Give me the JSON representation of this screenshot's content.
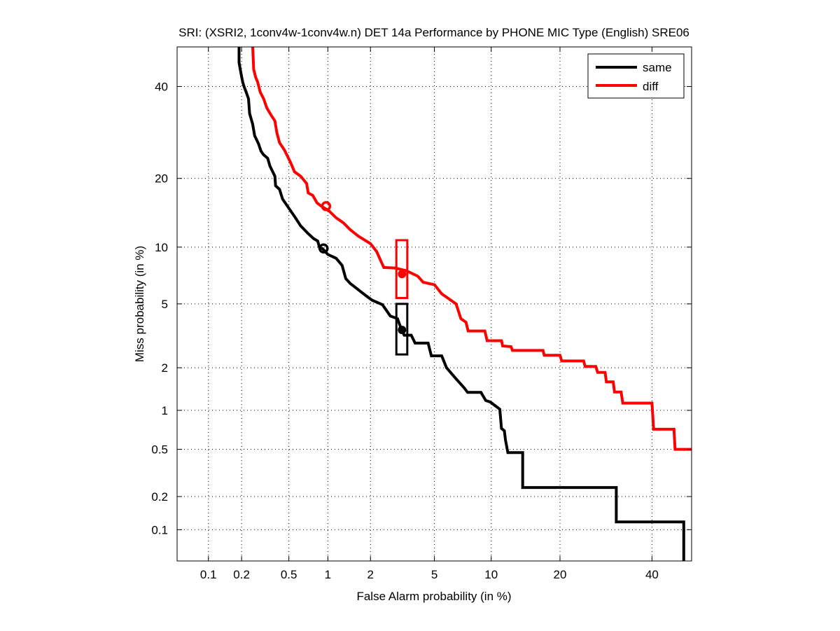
{
  "chart_data": {
    "type": "line",
    "scale": "normal-deviate (DET)",
    "title": "SRI: (XSRI2, 1conv4w-1conv4w.n) DET 14a Performance by PHONE MIC Type (English) SRE06",
    "xlabel": "False Alarm probability (in %)",
    "ylabel": "Miss probability (in %)",
    "xlim": [
      0.05,
      50
    ],
    "ylim": [
      0.05,
      50
    ],
    "xticks": [
      0.1,
      0.2,
      0.5,
      1,
      2,
      5,
      10,
      20,
      40
    ],
    "xtick_labels": [
      "0.1",
      "0.2",
      "0.5",
      "1",
      "2",
      "5",
      "10",
      "20",
      "40"
    ],
    "yticks": [
      0.1,
      0.2,
      0.5,
      1,
      2,
      5,
      10,
      20,
      40
    ],
    "ytick_labels": [
      "0.1",
      "0.2",
      "0.5",
      "1",
      "2",
      "5",
      "10",
      "20",
      "40"
    ],
    "grid": true,
    "legend_position": "top-right",
    "series": [
      {
        "name": "same",
        "color": "#000000",
        "points": [
          [
            0.19,
            50.0
          ],
          [
            0.19,
            46.0
          ],
          [
            0.2,
            42.5
          ],
          [
            0.205,
            41.0
          ],
          [
            0.21,
            40.0
          ],
          [
            0.22,
            38.5
          ],
          [
            0.23,
            37.0
          ],
          [
            0.235,
            33.5
          ],
          [
            0.25,
            31.0
          ],
          [
            0.26,
            28.5
          ],
          [
            0.28,
            26.8
          ],
          [
            0.295,
            25.2
          ],
          [
            0.31,
            24.5
          ],
          [
            0.335,
            23.8
          ],
          [
            0.35,
            22.3
          ],
          [
            0.385,
            20.4
          ],
          [
            0.39,
            18.7
          ],
          [
            0.42,
            18.1
          ],
          [
            0.445,
            16.5
          ],
          [
            0.5,
            15.1
          ],
          [
            0.56,
            13.8
          ],
          [
            0.62,
            12.6
          ],
          [
            0.71,
            11.6
          ],
          [
            0.78,
            11.0
          ],
          [
            0.84,
            10.7
          ],
          [
            0.87,
            9.85
          ],
          [
            0.91,
            9.85
          ],
          [
            1.0,
            9.2
          ],
          [
            1.15,
            8.8
          ],
          [
            1.27,
            8.1
          ],
          [
            1.35,
            6.9
          ],
          [
            1.45,
            6.5
          ],
          [
            1.7,
            5.9
          ],
          [
            1.9,
            5.5
          ],
          [
            2.05,
            5.25
          ],
          [
            2.4,
            4.95
          ],
          [
            2.7,
            4.25
          ],
          [
            3.0,
            4.1
          ],
          [
            3.15,
            3.6
          ],
          [
            3.3,
            3.25
          ],
          [
            3.65,
            3.25
          ],
          [
            3.85,
            2.9
          ],
          [
            4.6,
            2.9
          ],
          [
            4.8,
            2.4
          ],
          [
            5.5,
            2.4
          ],
          [
            5.85,
            2.0
          ],
          [
            6.5,
            1.72
          ],
          [
            7.3,
            1.45
          ],
          [
            7.6,
            1.35
          ],
          [
            8.9,
            1.35
          ],
          [
            9.4,
            1.18
          ],
          [
            9.9,
            1.15
          ],
          [
            11.0,
            1.02
          ],
          [
            11.2,
            0.73
          ],
          [
            11.55,
            0.7
          ],
          [
            11.7,
            0.59
          ],
          [
            12.0,
            0.47
          ],
          [
            14.0,
            0.47
          ],
          [
            14.0,
            0.24
          ],
          [
            31.5,
            0.24
          ],
          [
            31.5,
            0.118
          ],
          [
            48.0,
            0.118
          ],
          [
            48.0,
            0.05
          ]
        ],
        "min_dcf_point": [
          0.93,
          9.85
        ],
        "actual_dcf_point": [
          3.2,
          3.5
        ],
        "confidence_box": {
          "x": [
            2.95,
            3.45
          ],
          "y": [
            2.45,
            5.0
          ]
        }
      },
      {
        "name": "diff",
        "color": "#ff0000",
        "points": [
          [
            0.25,
            50.0
          ],
          [
            0.255,
            44.3
          ],
          [
            0.265,
            42.3
          ],
          [
            0.275,
            41.2
          ],
          [
            0.29,
            38.6
          ],
          [
            0.31,
            37.0
          ],
          [
            0.33,
            34.8
          ],
          [
            0.36,
            33.0
          ],
          [
            0.385,
            31.8
          ],
          [
            0.4,
            29.1
          ],
          [
            0.42,
            27.0
          ],
          [
            0.46,
            25.5
          ],
          [
            0.49,
            24.1
          ],
          [
            0.52,
            22.8
          ],
          [
            0.555,
            21.2
          ],
          [
            0.62,
            20.4
          ],
          [
            0.69,
            19.1
          ],
          [
            0.71,
            17.5
          ],
          [
            0.77,
            17.1
          ],
          [
            0.83,
            15.9
          ],
          [
            0.88,
            15.5
          ],
          [
            1.02,
            14.7
          ],
          [
            1.15,
            13.7
          ],
          [
            1.3,
            13.0
          ],
          [
            1.45,
            12.1
          ],
          [
            1.65,
            11.3
          ],
          [
            2.0,
            10.4
          ],
          [
            2.2,
            9.5
          ],
          [
            2.45,
            7.9
          ],
          [
            2.9,
            7.85
          ],
          [
            3.4,
            7.6
          ],
          [
            4.0,
            7.1
          ],
          [
            4.3,
            6.6
          ],
          [
            5.0,
            6.4
          ],
          [
            5.5,
            5.7
          ],
          [
            6.6,
            5.0
          ],
          [
            7.0,
            4.1
          ],
          [
            7.45,
            3.9
          ],
          [
            7.65,
            3.45
          ],
          [
            9.3,
            3.45
          ],
          [
            9.55,
            3.0
          ],
          [
            11.2,
            3.0
          ],
          [
            11.35,
            2.78
          ],
          [
            12.4,
            2.75
          ],
          [
            12.6,
            2.6
          ],
          [
            17.1,
            2.6
          ],
          [
            17.3,
            2.42
          ],
          [
            20.0,
            2.42
          ],
          [
            20.3,
            2.22
          ],
          [
            24.5,
            2.22
          ],
          [
            24.8,
            2.04
          ],
          [
            27.0,
            2.04
          ],
          [
            27.4,
            1.86
          ],
          [
            29.0,
            1.86
          ],
          [
            29.3,
            1.6
          ],
          [
            30.8,
            1.6
          ],
          [
            31.1,
            1.36
          ],
          [
            32.6,
            1.36
          ],
          [
            33.0,
            1.13
          ],
          [
            40.0,
            1.13
          ],
          [
            40.4,
            0.72
          ],
          [
            45.5,
            0.72
          ],
          [
            45.8,
            0.5
          ],
          [
            50.0,
            0.5
          ]
        ],
        "min_dcf_point": [
          0.97,
          15.4
        ],
        "actual_dcf_point": [
          3.2,
          7.3
        ],
        "confidence_box": {
          "x": [
            2.95,
            3.45
          ],
          "y": [
            5.4,
            10.8
          ]
        }
      }
    ]
  }
}
